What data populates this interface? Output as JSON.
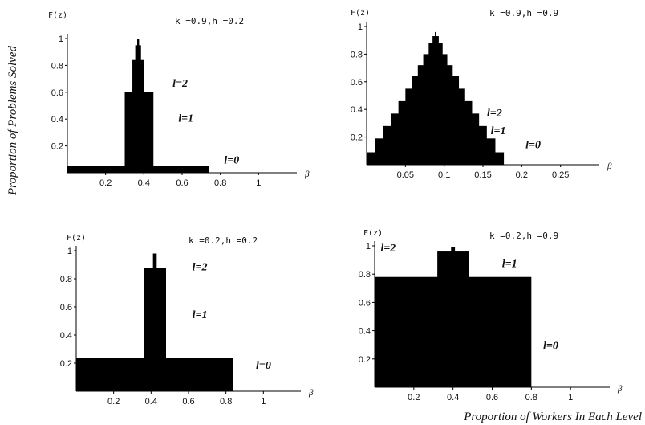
{
  "figure": {
    "ylabel": "Proportion of Problems Solved",
    "xlabel": "Proportion of Workers In Each Level"
  },
  "chart_data": [
    {
      "type": "area",
      "param_label": "k =0.9,h =0.2",
      "ylabel": "F(z)",
      "xlabel": "β",
      "xlim": [
        0,
        1.2
      ],
      "ylim": [
        0,
        1.0
      ],
      "xticks": [
        {
          "v": 0.2,
          "label": "0.2"
        },
        {
          "v": 0.4,
          "label": "0.4"
        },
        {
          "v": 0.6,
          "label": "0.6"
        },
        {
          "v": 0.8,
          "label": "0.8"
        },
        {
          "v": 1.0,
          "label": "1"
        }
      ],
      "yticks": [
        {
          "v": 0.2,
          "label": "0.2"
        },
        {
          "v": 0.4,
          "label": "0.4"
        },
        {
          "v": 0.6,
          "label": "0.6"
        },
        {
          "v": 0.8,
          "label": "0.8"
        },
        {
          "v": 1.0,
          "label": "1"
        }
      ],
      "steps": [
        [
          0.0,
          0.74,
          0.05
        ],
        [
          0.3,
          0.45,
          0.6
        ],
        [
          0.34,
          0.4,
          0.84
        ],
        [
          0.355,
          0.385,
          0.95
        ],
        [
          0.365,
          0.375,
          1.0
        ]
      ],
      "level_labels": [
        {
          "text": "l=2",
          "x": 0.55,
          "y": 0.64
        },
        {
          "text": "l=1",
          "x": 0.58,
          "y": 0.38
        },
        {
          "text": "l=0",
          "x": 0.82,
          "y": 0.07
        }
      ]
    },
    {
      "type": "area",
      "param_label": "k =0.9,h =0.9",
      "ylabel": "F(z)",
      "xlabel": "β",
      "xlim": [
        0,
        0.3
      ],
      "ylim": [
        0,
        1.0
      ],
      "xticks": [
        {
          "v": 0.05,
          "label": "0.05"
        },
        {
          "v": 0.1,
          "label": "0.1"
        },
        {
          "v": 0.15,
          "label": "0.15"
        },
        {
          "v": 0.2,
          "label": "0.2"
        },
        {
          "v": 0.25,
          "label": "0.25"
        }
      ],
      "yticks": [
        {
          "v": 0.2,
          "label": "0.2"
        },
        {
          "v": 0.4,
          "label": "0.4"
        },
        {
          "v": 0.6,
          "label": "0.6"
        },
        {
          "v": 0.8,
          "label": "0.8"
        },
        {
          "v": 1.0,
          "label": "1"
        }
      ],
      "steps": [
        [
          0.0,
          0.177,
          0.09
        ],
        [
          0.011,
          0.166,
          0.19
        ],
        [
          0.021,
          0.155,
          0.28
        ],
        [
          0.031,
          0.145,
          0.37
        ],
        [
          0.041,
          0.136,
          0.46
        ],
        [
          0.05,
          0.127,
          0.55
        ],
        [
          0.058,
          0.119,
          0.64
        ],
        [
          0.066,
          0.111,
          0.72
        ],
        [
          0.073,
          0.104,
          0.8
        ],
        [
          0.08,
          0.098,
          0.88
        ],
        [
          0.085,
          0.093,
          0.93
        ],
        [
          0.088,
          0.09,
          0.96
        ]
      ],
      "level_labels": [
        {
          "text": "l=2",
          "x": 0.155,
          "y": 0.35
        },
        {
          "text": "l=1",
          "x": 0.16,
          "y": 0.22
        },
        {
          "text": "l=0",
          "x": 0.205,
          "y": 0.12
        }
      ]
    },
    {
      "type": "area",
      "param_label": "k =0.2,h =0.2",
      "ylabel": "F(z)",
      "xlabel": "β",
      "xlim": [
        0,
        1.2
      ],
      "ylim": [
        0,
        1.0
      ],
      "xticks": [
        {
          "v": 0.2,
          "label": "0.2"
        },
        {
          "v": 0.4,
          "label": "0.4"
        },
        {
          "v": 0.6,
          "label": "0.6"
        },
        {
          "v": 0.8,
          "label": "0.8"
        },
        {
          "v": 1.0,
          "label": "1"
        }
      ],
      "yticks": [
        {
          "v": 0.2,
          "label": "0.2"
        },
        {
          "v": 0.4,
          "label": "0.4"
        },
        {
          "v": 0.6,
          "label": "0.6"
        },
        {
          "v": 0.8,
          "label": "0.8"
        },
        {
          "v": 1.0,
          "label": "1"
        }
      ],
      "steps": [
        [
          0.0,
          0.84,
          0.24
        ],
        [
          0.36,
          0.48,
          0.88
        ],
        [
          0.41,
          0.43,
          0.98
        ]
      ],
      "level_labels": [
        {
          "text": "l=2",
          "x": 0.62,
          "y": 0.86
        },
        {
          "text": "l=1",
          "x": 0.62,
          "y": 0.52
        },
        {
          "text": "l=0",
          "x": 0.96,
          "y": 0.16
        }
      ]
    },
    {
      "type": "area",
      "param_label": "k =0.2,h =0.9",
      "ylabel": "F(z)",
      "xlabel": "β",
      "xlim": [
        0,
        1.2
      ],
      "ylim": [
        0,
        1.0
      ],
      "xticks": [
        {
          "v": 0.2,
          "label": "0.2"
        },
        {
          "v": 0.4,
          "label": "0.4"
        },
        {
          "v": 0.6,
          "label": "0.6"
        },
        {
          "v": 0.8,
          "label": "0.8"
        },
        {
          "v": 1.0,
          "label": "1"
        }
      ],
      "yticks": [
        {
          "v": 0.2,
          "label": "0.2"
        },
        {
          "v": 0.4,
          "label": "0.4"
        },
        {
          "v": 0.6,
          "label": "0.6"
        },
        {
          "v": 0.8,
          "label": "0.8"
        },
        {
          "v": 1.0,
          "label": "1"
        }
      ],
      "steps": [
        [
          0.0,
          0.8,
          0.78
        ],
        [
          0.32,
          0.48,
          0.96
        ],
        [
          0.39,
          0.41,
          0.99
        ]
      ],
      "level_labels": [
        {
          "text": "l=2",
          "x": 0.03,
          "y": 0.96
        },
        {
          "text": "l=1",
          "x": 0.65,
          "y": 0.85
        },
        {
          "text": "l=0",
          "x": 0.86,
          "y": 0.27
        }
      ]
    }
  ]
}
